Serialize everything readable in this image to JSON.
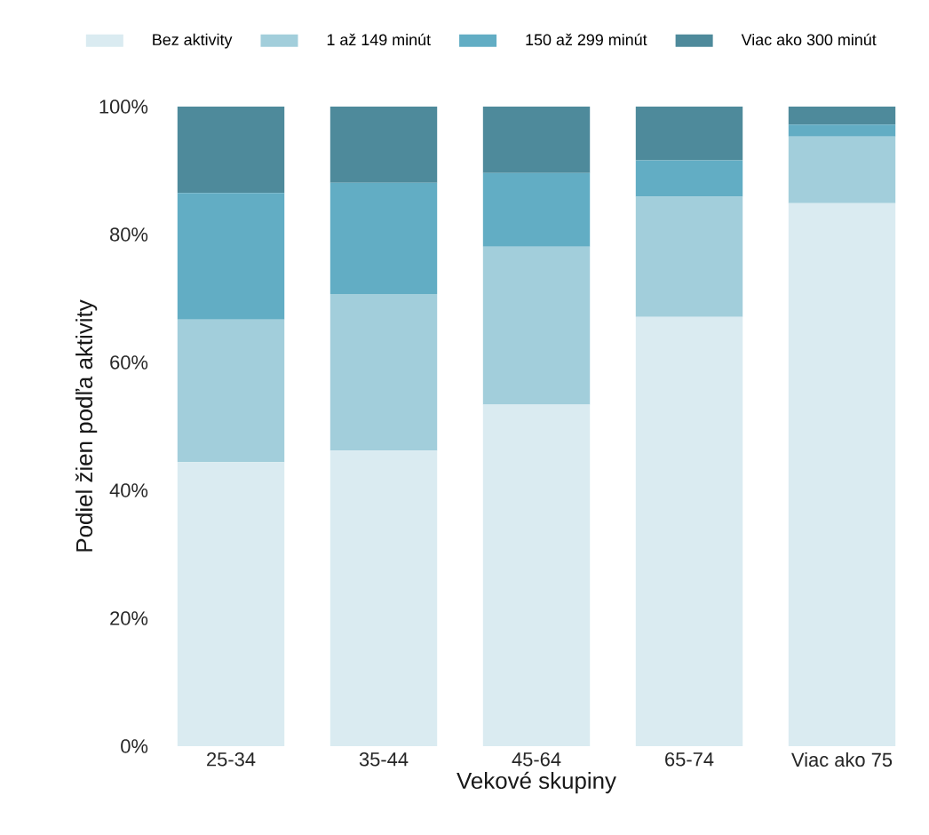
{
  "chart_data": {
    "type": "bar",
    "stacked": true,
    "legend": "top",
    "xlabel": "Vekové skupiny",
    "ylabel": "Podiel žien podľa aktivity",
    "categories": [
      "25-34",
      "35-44",
      "45-64",
      "65-74",
      "Viac ako 75"
    ],
    "series": [
      {
        "name": "Bez aktivity",
        "color": "#daebf1",
        "values": [
          44.4,
          46.2,
          53.4,
          67.1,
          84.9
        ]
      },
      {
        "name": "1 až 149 minút",
        "color": "#a2cedb",
        "values": [
          22.3,
          24.5,
          24.7,
          18.8,
          10.4
        ]
      },
      {
        "name": "150 až 299 minút",
        "color": "#62adc4",
        "values": [
          19.8,
          17.4,
          11.5,
          5.7,
          1.9
        ]
      },
      {
        "name": "Viac ako 300 minút",
        "color": "#4e8a9b",
        "values": [
          13.5,
          11.9,
          10.4,
          8.4,
          2.8
        ]
      }
    ],
    "ylim": [
      0,
      100
    ],
    "yticks": [
      {
        "value": 0,
        "label": "0%"
      },
      {
        "value": 20,
        "label": "20%"
      },
      {
        "value": 40,
        "label": "40%"
      },
      {
        "value": 60,
        "label": "60%"
      },
      {
        "value": 80,
        "label": "80%"
      },
      {
        "value": 100,
        "label": "100%"
      }
    ]
  }
}
